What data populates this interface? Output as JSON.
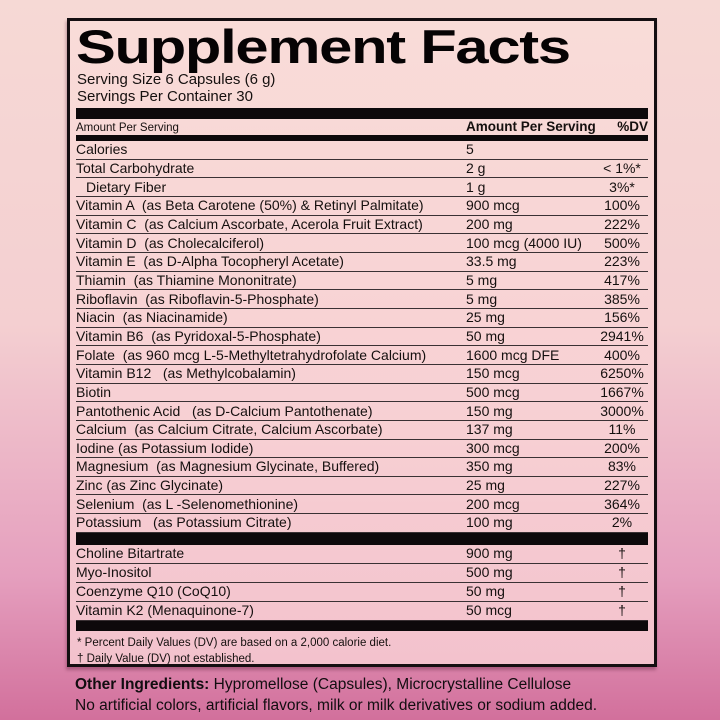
{
  "label": {
    "title": "Supplement Facts",
    "serving_size": "Serving Size 6 Capsules (6 g)",
    "servings_per_container": "Servings Per Container 30",
    "column_headers": {
      "left": "Amount Per Serving",
      "amount": "Amount Per Serving",
      "dv": "%DV"
    },
    "nutrients": [
      {
        "name": "Calories",
        "amount": "5",
        "dv": ""
      },
      {
        "name": "Total Carbohydrate",
        "amount": "2 g",
        "dv": "< 1%*"
      },
      {
        "name": "Dietary Fiber",
        "amount": "1 g",
        "dv": "3%*",
        "indent": true
      },
      {
        "name": "Vitamin A  (as Beta Carotene (50%) & Retinyl Palmitate)",
        "amount": "900 mcg",
        "dv": "100%"
      },
      {
        "name": "Vitamin C  (as Calcium Ascorbate, Acerola Fruit Extract)",
        "amount": "200 mg",
        "dv": "222%"
      },
      {
        "name": "Vitamin D  (as Cholecalciferol)",
        "amount": "100 mcg (4000 IU)",
        "dv": "500%"
      },
      {
        "name": "Vitamin E  (as D-Alpha Tocopheryl Acetate)",
        "amount": "33.5 mg",
        "dv": "223%"
      },
      {
        "name": "Thiamin  (as Thiamine Mononitrate)",
        "amount": "5 mg",
        "dv": "417%"
      },
      {
        "name": "Riboflavin  (as Riboflavin-5-Phosphate)",
        "amount": "5 mg",
        "dv": "385%"
      },
      {
        "name": "Niacin  (as Niacinamide)",
        "amount": "25 mg",
        "dv": "156%"
      },
      {
        "name": "Vitamin B6  (as Pyridoxal-5-Phosphate)",
        "amount": "50 mg",
        "dv": "2941%"
      },
      {
        "name": "Folate  (as 960 mcg L-5-Methyltetrahydrofolate Calcium)",
        "amount": "1600 mcg DFE",
        "dv": "400%"
      },
      {
        "name": "Vitamin B12   (as Methylcobalamin)",
        "amount": "150 mcg",
        "dv": "6250%"
      },
      {
        "name": "Biotin",
        "amount": "500 mcg",
        "dv": "1667%"
      },
      {
        "name": "Pantothenic Acid   (as D-Calcium Pantothenate)",
        "amount": "150 mg",
        "dv": "3000%"
      },
      {
        "name": "Calcium  (as Calcium Citrate, Calcium Ascorbate)",
        "amount": "137 mg",
        "dv": "11%"
      },
      {
        "name": "Iodine (as Potassium Iodide)",
        "amount": "300 mcg",
        "dv": "200%"
      },
      {
        "name": "Magnesium  (as Magnesium Glycinate, Buffered)",
        "amount": "350 mg",
        "dv": "83%"
      },
      {
        "name": "Zinc (as Zinc Glycinate)",
        "amount": "25 mg",
        "dv": "227%"
      },
      {
        "name": "Selenium  (as L -Selenomethionine)",
        "amount": "200 mcg",
        "dv": "364%"
      },
      {
        "name": "Potassium   (as Potassium Citrate)",
        "amount": "100 mg",
        "dv": "2%"
      }
    ],
    "other_nutrients": [
      {
        "name": "Choline Bitartrate",
        "amount": "900 mg",
        "dv": "†"
      },
      {
        "name": "Myo-Inositol",
        "amount": "500 mg",
        "dv": "†"
      },
      {
        "name": "Coenzyme Q10 (CoQ10)",
        "amount": "50 mg",
        "dv": "†"
      },
      {
        "name": "Vitamin K2 (Menaquinone-7)",
        "amount": "50 mcg",
        "dv": "†"
      }
    ],
    "footnotes": [
      "* Percent Daily Values (DV) are based on a 2,000 calorie diet.",
      "† Daily Value (DV) not established."
    ]
  },
  "below_label": {
    "other_ingredients_label": "Other Ingredients:",
    "other_ingredients_text": " Hypromellose (Capsules), Microcrystalline Cellulose",
    "disclaimer": "No artificial colors, artificial flavors, milk or milk derivatives or sodium added."
  },
  "colors": {
    "background_top": "#f6d9d5",
    "background_bottom": "#d2709c",
    "panel_top": "#f9dcd8",
    "panel_bottom": "#f3c2cd",
    "ink": "#15100f"
  }
}
